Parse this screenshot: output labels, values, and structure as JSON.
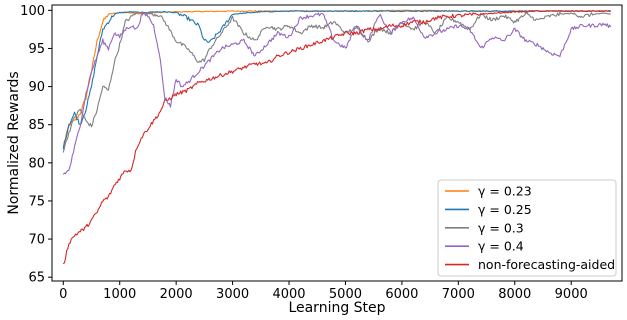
{
  "chart_data": {
    "type": "line",
    "title": "",
    "xlabel": "Learning Step",
    "ylabel": "Normalized Rewards",
    "xlim": [
      -200,
      9900
    ],
    "ylim": [
      64.5,
      100.7
    ],
    "xticks": [
      0,
      1000,
      2000,
      3000,
      4000,
      5000,
      6000,
      7000,
      8000,
      9000,
      10000
    ],
    "yticks": [
      65,
      70,
      75,
      80,
      85,
      90,
      95,
      100
    ],
    "grid": false,
    "legend_position": "lower-right",
    "series": [
      {
        "name": "γ = 0.23",
        "color": "#ff7f0e",
        "x": [
          0,
          100,
          200,
          300,
          400,
          500,
          600,
          700,
          800,
          900,
          1000,
          1200,
          1400,
          1600,
          2000,
          3000,
          4000,
          5000,
          6000,
          6500,
          7000,
          8000,
          9000,
          9700
        ],
        "y": [
          82,
          85,
          85.5,
          86.5,
          88.5,
          92,
          96,
          98.5,
          99.5,
          99.6,
          99.7,
          99.7,
          99.5,
          99.7,
          99.8,
          99.9,
          99.9,
          99.9,
          100,
          100,
          99.9,
          99.9,
          99.9,
          99.9
        ]
      },
      {
        "name": "γ = 0.25",
        "color": "#1f77b4",
        "x": [
          0,
          100,
          200,
          300,
          400,
          500,
          600,
          700,
          800,
          900,
          1000,
          1200,
          1400,
          1600,
          1800,
          2000,
          2200,
          2400,
          2500,
          2600,
          2800,
          3000,
          3500,
          4000,
          5000,
          6000,
          7000,
          8000,
          9000,
          9700
        ],
        "y": [
          82,
          85,
          86.5,
          85,
          87,
          90,
          94,
          97.5,
          98.5,
          99.5,
          99.7,
          99.8,
          99.7,
          99.8,
          99.8,
          99.7,
          99,
          98,
          96,
          95.8,
          97.5,
          99.5,
          99.8,
          99.9,
          99.9,
          99.9,
          99.9,
          99.9,
          99.9,
          99.9
        ]
      },
      {
        "name": "γ = 0.3",
        "color": "#7f7f7f",
        "x": [
          0,
          100,
          200,
          300,
          400,
          500,
          600,
          700,
          800,
          900,
          1000,
          1100,
          1300,
          1500,
          1700,
          1800,
          2000,
          2200,
          2400,
          2500,
          2600,
          2800,
          3000,
          3200,
          3400,
          3600,
          3800,
          4000,
          4200,
          4400,
          4600,
          4800,
          5000,
          5200,
          5400,
          5600,
          5800,
          6000,
          6200,
          6400,
          6600,
          6800,
          7000,
          7200,
          7400,
          7600,
          7800,
          8000,
          8200,
          8400,
          8600,
          8800,
          9000,
          9200,
          9400,
          9600,
          9700
        ],
        "y": [
          81.5,
          84,
          86,
          87,
          85.5,
          84.8,
          87,
          90,
          89.5,
          93,
          95.5,
          98.5,
          99.7,
          99.6,
          99.4,
          98.5,
          96,
          95,
          93.2,
          93.5,
          95,
          97,
          99,
          97,
          96,
          98,
          97.5,
          98,
          97,
          98,
          97.7,
          98.5,
          97,
          97.8,
          96,
          97.7,
          97,
          98.5,
          97.5,
          98.5,
          97,
          99,
          98.5,
          97.5,
          99.5,
          98.7,
          99.3,
          98.5,
          99.5,
          98.7,
          99.2,
          99.5,
          99.6,
          99.2,
          99.5,
          99.6,
          99.5
        ]
      },
      {
        "name": "γ = 0.4",
        "color": "#9467bd",
        "x": [
          0,
          100,
          200,
          300,
          400,
          500,
          600,
          700,
          800,
          900,
          1000,
          1100,
          1200,
          1300,
          1400,
          1500,
          1600,
          1700,
          1800,
          1900,
          2000,
          2100,
          2200,
          2400,
          2600,
          2800,
          3000,
          3200,
          3400,
          3600,
          3800,
          4000,
          4200,
          4400,
          4600,
          4800,
          5000,
          5200,
          5400,
          5600,
          5800,
          6000,
          6200,
          6400,
          6600,
          6800,
          7000,
          7200,
          7400,
          7600,
          7800,
          8000,
          8200,
          8400,
          8600,
          8800,
          9000,
          9200,
          9400,
          9600,
          9700
        ],
        "y": [
          78.5,
          79,
          82,
          85,
          89,
          92,
          94,
          96,
          95,
          97,
          96.5,
          97.5,
          98,
          97.5,
          99.5,
          99.3,
          98,
          94.5,
          88.5,
          87.5,
          91,
          90,
          90.5,
          92,
          93.5,
          95,
          95.5,
          96,
          94,
          95.5,
          97,
          96.5,
          99,
          99.3,
          99.5,
          96,
          95,
          98,
          96,
          99.5,
          97,
          98.5,
          99,
          96.5,
          97,
          97.5,
          98,
          97.5,
          95,
          96.5,
          96,
          97.5,
          96,
          95.5,
          94.5,
          94,
          97.5,
          98,
          98,
          98.2,
          97.8
        ]
      },
      {
        "name": "non-forecasting-aided",
        "color": "#d62728",
        "x": [
          0,
          100,
          200,
          300,
          400,
          500,
          600,
          700,
          800,
          900,
          1000,
          1100,
          1200,
          1300,
          1400,
          1500,
          1600,
          1700,
          1800,
          1900,
          2000,
          2200,
          2400,
          2600,
          2800,
          3000,
          3200,
          3400,
          3600,
          3800,
          4000,
          4200,
          4400,
          4600,
          4800,
          5000,
          5200,
          5400,
          5600,
          5800,
          6000,
          6200,
          6400,
          6600,
          6800,
          7000,
          7200,
          7400,
          7600,
          7800,
          8000,
          8200,
          8400,
          8600,
          8800,
          9000,
          9200,
          9400,
          9600,
          9700
        ],
        "y": [
          66.5,
          69.5,
          70.5,
          71,
          71.5,
          72.5,
          73.5,
          75,
          75.5,
          77,
          78,
          79,
          79,
          82,
          83.5,
          84.5,
          85.5,
          86.5,
          88,
          88.5,
          89,
          89.5,
          90.5,
          91,
          91.5,
          92,
          92.5,
          93,
          93,
          94,
          94.5,
          95,
          95.5,
          96,
          96.5,
          97,
          97,
          97.5,
          97.5,
          98,
          98,
          98.5,
          98.5,
          99,
          99.2,
          99.3,
          99.4,
          99.5,
          99.6,
          99.7,
          99.8,
          99.8,
          99.9,
          99.9,
          99.9,
          99.9,
          99.9,
          99.9,
          99.9,
          99.9
        ]
      }
    ]
  }
}
